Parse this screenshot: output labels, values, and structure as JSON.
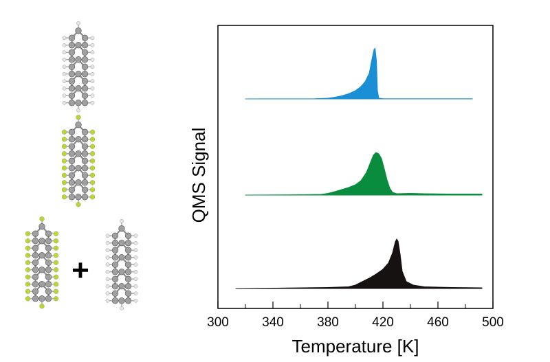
{
  "chart_data": {
    "type": "area",
    "title": "",
    "xlabel": "Temperature [K]",
    "ylabel": "QMS Signal",
    "xlim": [
      300,
      500
    ],
    "x_ticks": [
      300,
      340,
      380,
      420,
      460,
      500
    ],
    "x_tick_labels": [
      "300",
      "340",
      "380",
      "420",
      "460",
      "500"
    ],
    "x_minor_ticks": [
      320,
      360,
      400,
      440,
      480
    ],
    "y_ticks_shown": false,
    "grid": false,
    "legend": "none",
    "series": [
      {
        "molecule_color": "#a0a0a0",
        "color": "#1a8fd6",
        "x_range": [
          320,
          485
        ],
        "points": [
          [
            320,
            0
          ],
          [
            370,
            0.3
          ],
          [
            380,
            1
          ],
          [
            385,
            2.5
          ],
          [
            390,
            4.5
          ],
          [
            395,
            7.5
          ],
          [
            400,
            12
          ],
          [
            404,
            18
          ],
          [
            407,
            25
          ],
          [
            410,
            37
          ],
          [
            412,
            58
          ],
          [
            413.5,
            72
          ],
          [
            414.3,
            74
          ],
          [
            415.3,
            55
          ],
          [
            416,
            12
          ],
          [
            417,
            1
          ],
          [
            420,
            0.4
          ],
          [
            485,
            0.2
          ]
        ]
      },
      {
        "molecule_color": "#a0a0a0",
        "color": "#0a8c3f",
        "x_range": [
          320,
          492
        ],
        "points": [
          [
            320,
            0
          ],
          [
            360,
            0.5
          ],
          [
            375,
            1
          ],
          [
            380,
            2.5
          ],
          [
            385,
            5
          ],
          [
            390,
            8
          ],
          [
            395,
            11
          ],
          [
            400,
            15
          ],
          [
            404,
            21
          ],
          [
            408,
            33
          ],
          [
            411,
            48
          ],
          [
            413,
            58
          ],
          [
            415,
            62
          ],
          [
            417,
            60
          ],
          [
            419,
            53
          ],
          [
            421,
            38
          ],
          [
            423,
            22
          ],
          [
            425,
            10
          ],
          [
            427,
            4
          ],
          [
            430,
            2
          ],
          [
            440,
            2.5
          ],
          [
            450,
            2
          ],
          [
            470,
            1.5
          ],
          [
            492,
            1.5
          ]
        ]
      },
      {
        "color": "#161212",
        "x_range": [
          313,
          492
        ],
        "points": [
          [
            313,
            0
          ],
          [
            340,
            0.5
          ],
          [
            380,
            1.5
          ],
          [
            395,
            2.5
          ],
          [
            400,
            5
          ],
          [
            405,
            10
          ],
          [
            410,
            15
          ],
          [
            415,
            21
          ],
          [
            420,
            28
          ],
          [
            424,
            37
          ],
          [
            427,
            52
          ],
          [
            429,
            68
          ],
          [
            430,
            72
          ],
          [
            431,
            69
          ],
          [
            432.5,
            50
          ],
          [
            434,
            25
          ],
          [
            437,
            10
          ],
          [
            442,
            5
          ],
          [
            450,
            2.5
          ],
          [
            470,
            1.5
          ],
          [
            492,
            1
          ]
        ]
      }
    ]
  },
  "molecules": {
    "carbon_color": "#a0a0a0",
    "hydrogen_color": "#e6e6e6",
    "fluorine_color": "#b8d82a",
    "plus_sign": "+"
  }
}
